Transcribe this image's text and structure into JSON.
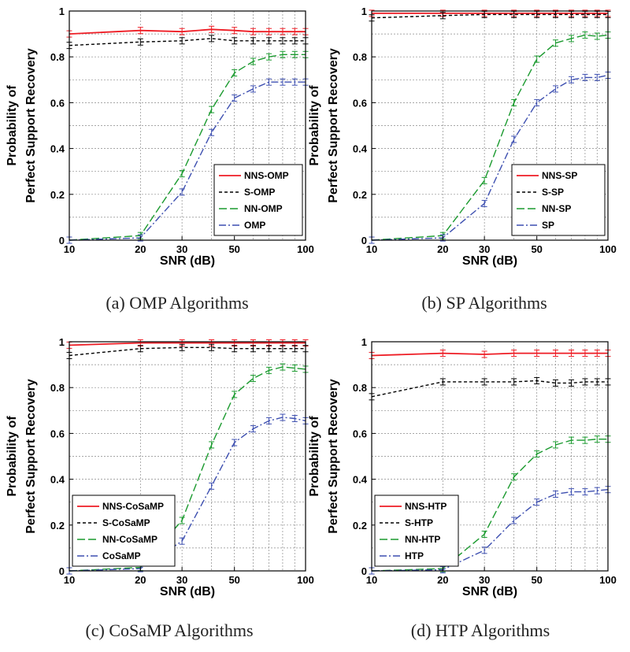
{
  "chart_data": [
    {
      "type": "line",
      "title": "",
      "caption": "(a) OMP Algorithms",
      "xlabel": "SNR (dB)",
      "ylabel_lines": [
        "Probability  of",
        "Perfect  Support  Recovery"
      ],
      "xscale": "log",
      "xlim": [
        10,
        100
      ],
      "ylim": [
        0,
        1
      ],
      "xticks": [
        10,
        20,
        30,
        50,
        100
      ],
      "yticks": [
        0,
        0.2,
        0.4,
        0.6,
        0.8,
        1
      ],
      "ytick_labels": [
        "0",
        "0.2",
        "0.4",
        "0.6",
        "0.8",
        "1"
      ],
      "grid": true,
      "legend_position": "lower-right",
      "x": [
        10,
        20,
        30,
        40,
        50,
        60,
        70,
        80,
        90,
        100
      ],
      "series": [
        {
          "name": "NNS-OMP",
          "color": "#ee1c24",
          "style": "solid",
          "values": [
            0.9,
            0.915,
            0.91,
            0.92,
            0.915,
            0.91,
            0.91,
            0.91,
            0.91,
            0.91
          ]
        },
        {
          "name": "S-OMP",
          "color": "#000000",
          "style": "dashed",
          "values": [
            0.85,
            0.865,
            0.87,
            0.88,
            0.87,
            0.87,
            0.87,
            0.87,
            0.87,
            0.87
          ]
        },
        {
          "name": "NN-OMP",
          "color": "#1a9a2e",
          "style": "longdash",
          "values": [
            0.0,
            0.02,
            0.29,
            0.57,
            0.73,
            0.78,
            0.8,
            0.81,
            0.81,
            0.81
          ]
        },
        {
          "name": "OMP",
          "color": "#3d4fb0",
          "style": "dashdot",
          "values": [
            0.0,
            0.01,
            0.21,
            0.47,
            0.62,
            0.66,
            0.69,
            0.69,
            0.69,
            0.69
          ]
        }
      ]
    },
    {
      "type": "line",
      "title": "",
      "caption": "(b) SP Algorithms",
      "xlabel": "SNR (dB)",
      "ylabel_lines": [
        "Probability  of",
        "Perfect  Support  Recovery"
      ],
      "xscale": "log",
      "xlim": [
        10,
        100
      ],
      "ylim": [
        0,
        1
      ],
      "xticks": [
        10,
        20,
        30,
        50,
        100
      ],
      "yticks": [
        0,
        0.2,
        0.4,
        0.6,
        0.8,
        1
      ],
      "ytick_labels": [
        "0",
        "0.2",
        "0.4",
        "0.6",
        "0.8",
        "1"
      ],
      "grid": true,
      "legend_position": "lower-right",
      "x": [
        10,
        20,
        30,
        40,
        50,
        60,
        70,
        80,
        90,
        100
      ],
      "series": [
        {
          "name": "NNS-SP",
          "color": "#ee1c24",
          "style": "solid",
          "values": [
            0.99,
            0.99,
            0.99,
            0.99,
            0.99,
            0.99,
            0.99,
            0.99,
            0.99,
            0.99
          ]
        },
        {
          "name": "S-SP",
          "color": "#000000",
          "style": "dashed",
          "values": [
            0.97,
            0.98,
            0.985,
            0.985,
            0.985,
            0.985,
            0.985,
            0.985,
            0.985,
            0.985
          ]
        },
        {
          "name": "NN-SP",
          "color": "#1a9a2e",
          "style": "longdash",
          "values": [
            0.0,
            0.02,
            0.26,
            0.6,
            0.79,
            0.86,
            0.88,
            0.895,
            0.89,
            0.895
          ]
        },
        {
          "name": "SP",
          "color": "#3d4fb0",
          "style": "dashdot",
          "values": [
            0.0,
            0.01,
            0.16,
            0.44,
            0.6,
            0.66,
            0.7,
            0.71,
            0.71,
            0.72
          ]
        }
      ]
    },
    {
      "type": "line",
      "title": "",
      "caption": "(c) CoSaMP Algorithms",
      "xlabel": "SNR (dB)",
      "ylabel_lines": [
        "Probability  of",
        "Perfect  Support  Recovery"
      ],
      "xscale": "log",
      "xlim": [
        10,
        100
      ],
      "ylim": [
        0,
        1
      ],
      "xticks": [
        10,
        20,
        30,
        50,
        100
      ],
      "yticks": [
        0,
        0.2,
        0.4,
        0.6,
        0.8,
        1
      ],
      "ytick_labels": [
        "0",
        "0.2",
        "0.4",
        "0.6",
        "0.8",
        "1"
      ],
      "grid": true,
      "legend_position": "lower-left",
      "x": [
        10,
        20,
        30,
        40,
        50,
        60,
        70,
        80,
        90,
        100
      ],
      "series": [
        {
          "name": "NNS-CoSaMP",
          "color": "#ee1c24",
          "style": "solid",
          "values": [
            0.985,
            0.995,
            0.995,
            0.995,
            0.995,
            0.995,
            0.995,
            0.995,
            0.995,
            0.995
          ]
        },
        {
          "name": "S-CoSaMP",
          "color": "#000000",
          "style": "dashed",
          "values": [
            0.94,
            0.97,
            0.975,
            0.975,
            0.97,
            0.97,
            0.97,
            0.97,
            0.97,
            0.97
          ]
        },
        {
          "name": "NN-CoSaMP",
          "color": "#1a9a2e",
          "style": "longdash",
          "values": [
            0.0,
            0.015,
            0.22,
            0.55,
            0.77,
            0.84,
            0.875,
            0.89,
            0.885,
            0.88
          ]
        },
        {
          "name": "CoSaMP",
          "color": "#3d4fb0",
          "style": "dashdot",
          "values": [
            0.0,
            0.01,
            0.13,
            0.37,
            0.56,
            0.62,
            0.655,
            0.67,
            0.665,
            0.655
          ]
        }
      ]
    },
    {
      "type": "line",
      "title": "",
      "caption": "(d) HTP Algorithms",
      "xlabel": "SNR (dB)",
      "ylabel_lines": [
        "Probability  of",
        "Perfect  Support  Recovery"
      ],
      "xscale": "log",
      "xlim": [
        10,
        100
      ],
      "ylim": [
        0,
        1
      ],
      "xticks": [
        10,
        20,
        30,
        50,
        100
      ],
      "yticks": [
        0,
        0.2,
        0.4,
        0.6,
        0.8,
        1
      ],
      "ytick_labels": [
        "0",
        "0.2",
        "0.4",
        "0.6",
        "0.8",
        "1"
      ],
      "grid": true,
      "legend_position": "lower-left",
      "x": [
        10,
        20,
        30,
        40,
        50,
        60,
        70,
        80,
        90,
        100
      ],
      "series": [
        {
          "name": "NNS-HTP",
          "color": "#ee1c24",
          "style": "solid",
          "values": [
            0.94,
            0.95,
            0.945,
            0.95,
            0.95,
            0.95,
            0.95,
            0.95,
            0.95,
            0.95
          ]
        },
        {
          "name": "S-HTP",
          "color": "#000000",
          "style": "dashed",
          "values": [
            0.76,
            0.825,
            0.825,
            0.825,
            0.83,
            0.82,
            0.82,
            0.825,
            0.825,
            0.825
          ]
        },
        {
          "name": "NN-HTP",
          "color": "#1a9a2e",
          "style": "longdash",
          "values": [
            0.0,
            0.01,
            0.16,
            0.41,
            0.51,
            0.55,
            0.57,
            0.57,
            0.575,
            0.575
          ]
        },
        {
          "name": "HTP",
          "color": "#3d4fb0",
          "style": "dashdot",
          "values": [
            0.0,
            0.005,
            0.09,
            0.22,
            0.3,
            0.335,
            0.345,
            0.345,
            0.35,
            0.355
          ]
        }
      ]
    }
  ]
}
